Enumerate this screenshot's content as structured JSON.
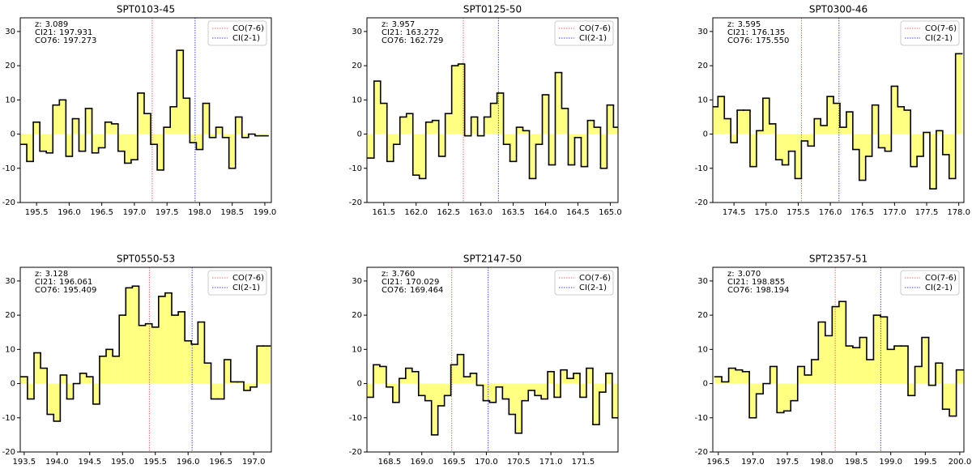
{
  "chart_data": [
    {
      "type": "step",
      "title": "SPT0103-45",
      "color": "#000000",
      "fill": "#ffff80",
      "legend": "upper right",
      "ylim": [
        -20,
        34
      ],
      "yticks": [
        -20,
        -10,
        0,
        10,
        20,
        30
      ],
      "xlim": [
        195.25,
        199.1
      ],
      "xticks": [
        195.5,
        {
          "value": 196,
          "label": "196.0"
        },
        196.5,
        {
          "value": 197,
          "label": "197.0"
        },
        197.5,
        {
          "value": 198,
          "label": "198.0"
        },
        198.5,
        {
          "value": 199,
          "label": "199.0"
        }
      ],
      "annotations": [
        {
          "label": "z:",
          "value": 3.089
        },
        {
          "label": "CI21:",
          "value": 197.931
        },
        {
          "label": "CO76:",
          "value": 197.273
        }
      ],
      "vlines": [
        {
          "name": "CO(7-6)",
          "x": 197.273,
          "color": "#ff6060"
        },
        {
          "name": "CI(2-1)",
          "x": 197.931,
          "color": "#4040ff"
        }
      ],
      "x": [
        195.3,
        195.4,
        195.5,
        195.6,
        195.7,
        195.8,
        195.9,
        196.0,
        196.1,
        196.2,
        196.3,
        196.4,
        196.5,
        196.6,
        196.7,
        196.8,
        196.9,
        197.0,
        197.1,
        197.2,
        197.3,
        197.4,
        197.5,
        197.6,
        197.7,
        197.8,
        197.9,
        198.0,
        198.1,
        198.2,
        198.3,
        198.4,
        198.5,
        198.6,
        198.7,
        198.8,
        198.9,
        199.0
      ],
      "values": [
        -3,
        -8,
        3.5,
        -5,
        -5.5,
        8.5,
        10,
        -6.5,
        4.5,
        -5,
        7.5,
        -5.5,
        -4,
        3.5,
        3,
        -5,
        -8.5,
        -7.5,
        12,
        6,
        -3,
        -10.5,
        2,
        8,
        24.5,
        10.5,
        -2.5,
        -4.5,
        9,
        -1,
        2,
        -1,
        -10,
        5,
        -1,
        0,
        -0.5,
        -0.5
      ]
    },
    {
      "type": "step",
      "title": "SPT0125-50",
      "color": "#000000",
      "fill": "#ffff80",
      "legend": "upper right",
      "ylim": [
        -20,
        34
      ],
      "yticks": [
        -20,
        -10,
        0,
        10,
        20,
        30
      ],
      "xlim": [
        161.24,
        165.12
      ],
      "xticks": [
        161.5,
        {
          "value": 162,
          "label": "162.0"
        },
        162.5,
        {
          "value": 163,
          "label": "163.0"
        },
        163.5,
        {
          "value": 164,
          "label": "164.0"
        },
        164.5,
        {
          "value": 165,
          "label": "165.0"
        }
      ],
      "annotations": [
        {
          "label": "z:",
          "value": 3.957
        },
        {
          "label": "CI21:",
          "value": 163.272
        },
        {
          "label": "CO76:",
          "value": 162.729
        }
      ],
      "vlines": [
        {
          "name": "CO(7-6)",
          "x": 162.729,
          "color": "#ff6060"
        },
        {
          "name": "CI(2-1)",
          "x": 163.272,
          "color": "#4040ff"
        }
      ],
      "x": [
        161.3,
        161.4,
        161.5,
        161.6,
        161.7,
        161.8,
        161.9,
        162.0,
        162.1,
        162.2,
        162.3,
        162.4,
        162.5,
        162.6,
        162.7,
        162.8,
        162.9,
        163.0,
        163.1,
        163.2,
        163.3,
        163.4,
        163.5,
        163.6,
        163.7,
        163.8,
        163.9,
        164.0,
        164.1,
        164.2,
        164.3,
        164.4,
        164.5,
        164.6,
        164.7,
        164.8,
        164.9,
        165.0,
        165.1
      ],
      "values": [
        -7,
        15.5,
        9,
        -8,
        -3,
        5,
        6,
        -12,
        -13,
        3.5,
        4,
        -6.5,
        6,
        20,
        20.5,
        -0.5,
        5,
        -0.5,
        5,
        9,
        12,
        -3,
        -8,
        2,
        1,
        -13,
        -3,
        11.5,
        -9,
        18,
        7.5,
        -9,
        -1,
        -9.5,
        4,
        2,
        -10,
        8.5,
        2
      ]
    },
    {
      "type": "step",
      "title": "SPT0300-46",
      "color": "#000000",
      "fill": "#ffff80",
      "legend": "upper right",
      "ylim": [
        -20,
        34
      ],
      "yticks": [
        -20,
        -10,
        0,
        10,
        20,
        30
      ],
      "xlim": [
        174.17,
        178.08
      ],
      "xticks": [
        174.5,
        {
          "value": 175,
          "label": "175.0"
        },
        175.5,
        {
          "value": 176,
          "label": "176.0"
        },
        176.5,
        {
          "value": 177,
          "label": "177.0"
        },
        177.5,
        {
          "value": 178,
          "label": "178.0"
        }
      ],
      "annotations": [
        {
          "label": "z:",
          "value": 3.595
        },
        {
          "label": "CI21:",
          "value": 176.135
        },
        {
          "label": "CO76:",
          "value": 175.55,
          "value_label": "175.550"
        }
      ],
      "vlines": [
        {
          "name": "CO(7-6)",
          "x": 175.55,
          "color": "#ff6060"
        },
        {
          "name": "CI(2-1)",
          "x": 176.135,
          "color": "#4040ff"
        }
      ],
      "x": [
        174.2,
        174.3,
        174.4,
        174.5,
        174.6,
        174.7,
        174.8,
        174.9,
        175.0,
        175.1,
        175.2,
        175.3,
        175.4,
        175.5,
        175.6,
        175.7,
        175.8,
        175.9,
        176.0,
        176.1,
        176.2,
        176.3,
        176.4,
        176.5,
        176.6,
        176.7,
        176.8,
        176.9,
        177.0,
        177.1,
        177.2,
        177.3,
        177.4,
        177.5,
        177.6,
        177.7,
        177.8,
        177.9,
        178.0
      ],
      "values": [
        8,
        11,
        4.5,
        -2.5,
        7,
        7,
        -9.5,
        1,
        10.5,
        3,
        -7.5,
        -9,
        -5,
        -13,
        -2,
        -3.5,
        4.5,
        2.5,
        11,
        9,
        2,
        6.5,
        -4.5,
        -13.5,
        -6.5,
        8.5,
        -4,
        -5,
        14,
        8,
        7,
        -9.5,
        -6.5,
        0.5,
        -16,
        1,
        -6,
        -13,
        23.5
      ]
    },
    {
      "type": "step",
      "title": "SPT0550-53",
      "color": "#000000",
      "fill": "#ffff80",
      "legend": "upper right",
      "ylim": [
        -20,
        34
      ],
      "yticks": [
        -20,
        -10,
        0,
        10,
        20,
        30
      ],
      "xlim": [
        193.44,
        197.27
      ],
      "xticks": [
        193.5,
        {
          "value": 194,
          "label": "194.0"
        },
        194.5,
        {
          "value": 195,
          "label": "195.0"
        },
        195.5,
        {
          "value": 196,
          "label": "196.0"
        },
        196.5,
        {
          "value": 197,
          "label": "197.0"
        }
      ],
      "annotations": [
        {
          "label": "z:",
          "value": 3.128
        },
        {
          "label": "CI21:",
          "value": 196.061
        },
        {
          "label": "CO76:",
          "value": 195.409
        }
      ],
      "vlines": [
        {
          "name": "CO(7-6)",
          "x": 195.409,
          "color": "#ff6060"
        },
        {
          "name": "CI(2-1)",
          "x": 196.061,
          "color": "#4040ff"
        }
      ],
      "x": [
        193.5,
        193.6,
        193.7,
        193.8,
        193.9,
        194.0,
        194.1,
        194.2,
        194.3,
        194.4,
        194.5,
        194.6,
        194.7,
        194.8,
        194.9,
        195.0,
        195.1,
        195.2,
        195.3,
        195.4,
        195.5,
        195.6,
        195.7,
        195.8,
        195.9,
        196.0,
        196.1,
        196.2,
        196.3,
        196.4,
        196.5,
        196.6,
        196.7,
        196.8,
        196.9,
        197.0,
        197.1,
        197.2
      ],
      "values": [
        2,
        -4.5,
        9,
        4.5,
        -9,
        -11,
        2.5,
        -4.5,
        0,
        3,
        2,
        -6,
        8,
        10,
        8,
        20,
        28,
        28.5,
        17,
        17.5,
        16.5,
        25.5,
        26.5,
        20,
        21,
        12.5,
        11.5,
        18,
        6,
        -4.5,
        -4.5,
        7,
        0.5,
        0.5,
        -2,
        -1,
        11,
        11
      ]
    },
    {
      "type": "step",
      "title": "SPT2147-50",
      "color": "#000000",
      "fill": "#ffff80",
      "legend": "upper right",
      "ylim": [
        -20,
        34
      ],
      "yticks": [
        -20,
        -10,
        0,
        10,
        20,
        30
      ],
      "xlim": [
        168.15,
        172.04
      ],
      "xticks": [
        168.5,
        {
          "value": 169,
          "label": "169.0"
        },
        169.5,
        {
          "value": 170,
          "label": "170.0"
        },
        170.5,
        {
          "value": 171,
          "label": "171.0"
        },
        171.5
      ],
      "annotations": [
        {
          "label": "z:",
          "value": 3.76,
          "value_label": "3.760"
        },
        {
          "label": "CI21:",
          "value": 170.029
        },
        {
          "label": "CO76:",
          "value": 169.464
        }
      ],
      "vlines": [
        {
          "name": "CO(7-6)",
          "x": 169.464,
          "color": "#ff6060"
        },
        {
          "name": "CI(2-1)",
          "x": 170.029,
          "color": "#4040ff"
        }
      ],
      "x": [
        168.2,
        168.3,
        168.4,
        168.5,
        168.6,
        168.7,
        168.8,
        168.9,
        169.0,
        169.1,
        169.2,
        169.3,
        169.4,
        169.5,
        169.6,
        169.7,
        169.8,
        169.9,
        170.0,
        170.1,
        170.2,
        170.3,
        170.4,
        170.5,
        170.6,
        170.7,
        170.8,
        170.9,
        171.0,
        171.1,
        171.2,
        171.3,
        171.4,
        171.5,
        171.6,
        171.7,
        171.8,
        171.9,
        172.0
      ],
      "values": [
        -4,
        5.5,
        5,
        -1,
        -5.5,
        1.5,
        4.5,
        3.5,
        -3.5,
        -5,
        -15,
        -6.5,
        -3.5,
        5.5,
        8.5,
        2,
        3,
        -0.5,
        -5,
        -5.5,
        -1,
        -4.5,
        -9,
        -14.5,
        -5,
        -2,
        -3.5,
        -4.5,
        3.5,
        -4,
        4,
        1.5,
        3,
        -4,
        4.5,
        -12,
        -2.5,
        3,
        -10
      ]
    },
    {
      "type": "step",
      "title": "SPT2357-51",
      "color": "#000000",
      "fill": "#ffff80",
      "legend": "upper right",
      "ylim": [
        -20,
        34
      ],
      "yticks": [
        -20,
        -10,
        0,
        10,
        20,
        30
      ],
      "xlim": [
        196.42,
        200.06
      ],
      "xticks": [
        196.5,
        {
          "value": 197,
          "label": "197.0"
        },
        197.5,
        {
          "value": 198,
          "label": "198.0"
        },
        198.5,
        {
          "value": 199,
          "label": "199.0"
        },
        199.5,
        {
          "value": 200,
          "label": "200.0"
        }
      ],
      "annotations": [
        {
          "label": "z:",
          "value": 3.07,
          "value_label": "3.070"
        },
        {
          "label": "CI21:",
          "value": 198.855
        },
        {
          "label": "CO76:",
          "value": 198.194
        }
      ],
      "vlines": [
        {
          "name": "CO(7-6)",
          "x": 198.194,
          "color": "#ff6060"
        },
        {
          "name": "CI(2-1)",
          "x": 198.855,
          "color": "#4040ff"
        }
      ],
      "x": [
        196.5,
        196.6,
        196.7,
        196.8,
        196.9,
        197.0,
        197.1,
        197.2,
        197.3,
        197.4,
        197.5,
        197.6,
        197.7,
        197.8,
        197.9,
        198.0,
        198.1,
        198.2,
        198.3,
        198.4,
        198.5,
        198.6,
        198.7,
        198.8,
        198.9,
        199.0,
        199.1,
        199.2,
        199.3,
        199.4,
        199.5,
        199.6,
        199.7,
        199.8,
        199.9,
        200.0
      ],
      "values": [
        2,
        0.5,
        4.5,
        4,
        3.5,
        -10,
        -3,
        0,
        5,
        -8.5,
        -8,
        -5,
        5,
        2.5,
        7,
        18,
        14,
        22.5,
        24,
        11,
        10.5,
        13.5,
        7,
        20,
        19.5,
        10,
        11,
        11,
        -3.5,
        5,
        13.5,
        -0.5,
        6,
        -7.5,
        -9.5,
        4
      ]
    }
  ]
}
